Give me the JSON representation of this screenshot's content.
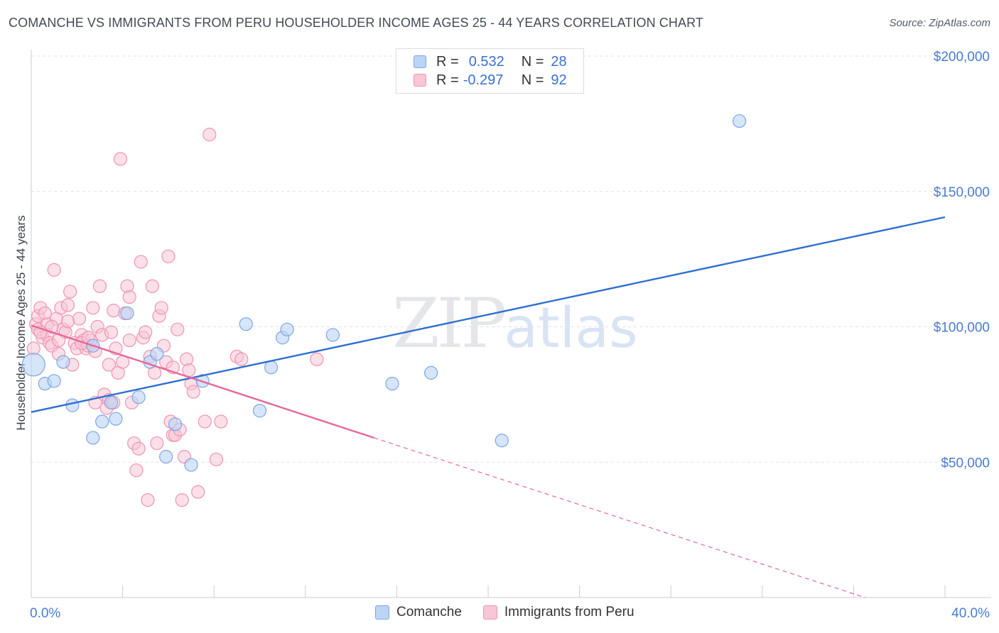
{
  "header": {
    "title": "COMANCHE VS IMMIGRANTS FROM PERU HOUSEHOLDER INCOME AGES 25 - 44 YEARS CORRELATION CHART",
    "source": "Source: ZipAtlas.com"
  },
  "watermark": {
    "zip": "ZIP",
    "atlas": "atlas"
  },
  "legend": {
    "rows": [
      {
        "r_label": "R =",
        "r_value": "0.532",
        "n_label": "N =",
        "n_value": "28"
      },
      {
        "r_label": "R =",
        "r_value": "-0.297",
        "n_label": "N =",
        "n_value": "92"
      }
    ]
  },
  "bottom_legend": {
    "series1": "Comanche",
    "series2": "Immigrants from Peru"
  },
  "colors": {
    "comanche_fill": "#bcd4f5",
    "comanche_stroke": "#7aa6e6",
    "comanche_line": "#2e6fd0",
    "peru_fill": "#f8c6d6",
    "peru_stroke": "#ee93b1",
    "peru_line": "#e5679a",
    "grid": "#dfe2e8",
    "axis_label": "#4a7bd0"
  },
  "chart_data": {
    "type": "scatter",
    "title": "COMANCHE VS IMMIGRANTS FROM PERU HOUSEHOLDER INCOME AGES 25 - 44 YEARS CORRELATION CHART",
    "xlabel": "",
    "ylabel": "Householder Income Ages 25 - 44 years",
    "xlim": [
      0,
      40
    ],
    "ylim": [
      0,
      210000
    ],
    "x_tick_labels": [
      "0.0%",
      "40.0%"
    ],
    "y_ticks": [
      50000,
      100000,
      150000,
      200000
    ],
    "y_tick_labels": [
      "$50,000",
      "$100,000",
      "$150,000",
      "$200,000"
    ],
    "grid": true,
    "legend_position": "top-center",
    "series": [
      {
        "name": "Comanche",
        "r": 0.532,
        "n": 28,
        "trend": {
          "x": [
            0,
            40
          ],
          "y": [
            68500,
            140500
          ],
          "dashed_to": null
        },
        "points": [
          [
            0.1,
            86000
          ],
          [
            0.6,
            79000
          ],
          [
            1.0,
            80000
          ],
          [
            1.4,
            87000
          ],
          [
            1.8,
            71000
          ],
          [
            2.7,
            93000
          ],
          [
            2.7,
            59000
          ],
          [
            3.1,
            65000
          ],
          [
            3.5,
            72000
          ],
          [
            3.7,
            66000
          ],
          [
            4.2,
            105000
          ],
          [
            4.7,
            74000
          ],
          [
            5.2,
            87000
          ],
          [
            5.5,
            90000
          ],
          [
            5.9,
            52000
          ],
          [
            6.3,
            64000
          ],
          [
            7.0,
            49000
          ],
          [
            7.5,
            80000
          ],
          [
            9.4,
            101000
          ],
          [
            10.0,
            69000
          ],
          [
            10.5,
            85000
          ],
          [
            11.0,
            96000
          ],
          [
            11.2,
            99000
          ],
          [
            13.2,
            97000
          ],
          [
            15.8,
            79000
          ],
          [
            17.5,
            83000
          ],
          [
            20.6,
            58000
          ],
          [
            31.0,
            176000
          ]
        ]
      },
      {
        "name": "Immigrants from Peru",
        "r": -0.297,
        "n": 92,
        "trend": {
          "x": [
            0,
            15
          ],
          "y": [
            100500,
            59000
          ],
          "dashed_x": [
            15,
            36.5
          ],
          "dashed_y": [
            59000,
            -1500
          ]
        },
        "points": [
          [
            0.1,
            92000
          ],
          [
            0.2,
            101000
          ],
          [
            0.3,
            104000
          ],
          [
            0.3,
            99000
          ],
          [
            0.4,
            107000
          ],
          [
            0.5,
            96000
          ],
          [
            0.6,
            105000
          ],
          [
            0.7,
            101000
          ],
          [
            0.7,
            97000
          ],
          [
            0.8,
            94000
          ],
          [
            0.9,
            93000
          ],
          [
            1.0,
            121000
          ],
          [
            1.1,
            103000
          ],
          [
            1.2,
            90000
          ],
          [
            1.3,
            107000
          ],
          [
            1.4,
            99000
          ],
          [
            1.5,
            98000
          ],
          [
            1.6,
            108000
          ],
          [
            1.7,
            113000
          ],
          [
            1.8,
            86000
          ],
          [
            1.9,
            94000
          ],
          [
            2.0,
            92000
          ],
          [
            2.1,
            103000
          ],
          [
            2.2,
            97000
          ],
          [
            2.3,
            95000
          ],
          [
            2.4,
            92000
          ],
          [
            2.5,
            93000
          ],
          [
            2.6,
            95000
          ],
          [
            2.7,
            107000
          ],
          [
            2.8,
            72000
          ],
          [
            2.9,
            100000
          ],
          [
            3.0,
            115000
          ],
          [
            3.1,
            97000
          ],
          [
            3.2,
            75000
          ],
          [
            3.3,
            70000
          ],
          [
            3.4,
            86000
          ],
          [
            3.5,
            98000
          ],
          [
            3.6,
            106000
          ],
          [
            3.7,
            92000
          ],
          [
            3.8,
            83000
          ],
          [
            3.9,
            162000
          ],
          [
            4.0,
            87000
          ],
          [
            4.1,
            105000
          ],
          [
            4.2,
            115000
          ],
          [
            4.3,
            111000
          ],
          [
            4.4,
            72000
          ],
          [
            4.5,
            57000
          ],
          [
            4.6,
            47000
          ],
          [
            4.7,
            55000
          ],
          [
            4.8,
            124000
          ],
          [
            4.9,
            96000
          ],
          [
            5.0,
            98000
          ],
          [
            5.1,
            36000
          ],
          [
            5.2,
            89000
          ],
          [
            5.3,
            115000
          ],
          [
            5.4,
            83000
          ],
          [
            5.5,
            57000
          ],
          [
            5.6,
            104000
          ],
          [
            5.7,
            107000
          ],
          [
            5.8,
            93000
          ],
          [
            5.9,
            87000
          ],
          [
            6.0,
            126000
          ],
          [
            6.1,
            65000
          ],
          [
            6.2,
            60000
          ],
          [
            6.3,
            60000
          ],
          [
            6.4,
            99000
          ],
          [
            6.5,
            62000
          ],
          [
            6.6,
            36000
          ],
          [
            6.7,
            52000
          ],
          [
            6.8,
            88000
          ],
          [
            6.9,
            84000
          ],
          [
            7.0,
            79000
          ],
          [
            7.1,
            76000
          ],
          [
            7.3,
            39000
          ],
          [
            7.6,
            65000
          ],
          [
            7.8,
            171000
          ],
          [
            8.1,
            51000
          ],
          [
            8.3,
            65000
          ],
          [
            9.0,
            89000
          ],
          [
            9.2,
            88000
          ],
          [
            12.5,
            88000
          ],
          [
            2.2,
            94000
          ],
          [
            0.9,
            100000
          ],
          [
            1.6,
            102000
          ],
          [
            2.5,
            96000
          ],
          [
            3.4,
            73000
          ],
          [
            4.3,
            95000
          ],
          [
            6.2,
            85000
          ],
          [
            0.4,
            98000
          ],
          [
            1.2,
            95000
          ],
          [
            2.8,
            91000
          ],
          [
            3.6,
            72000
          ]
        ]
      }
    ]
  }
}
